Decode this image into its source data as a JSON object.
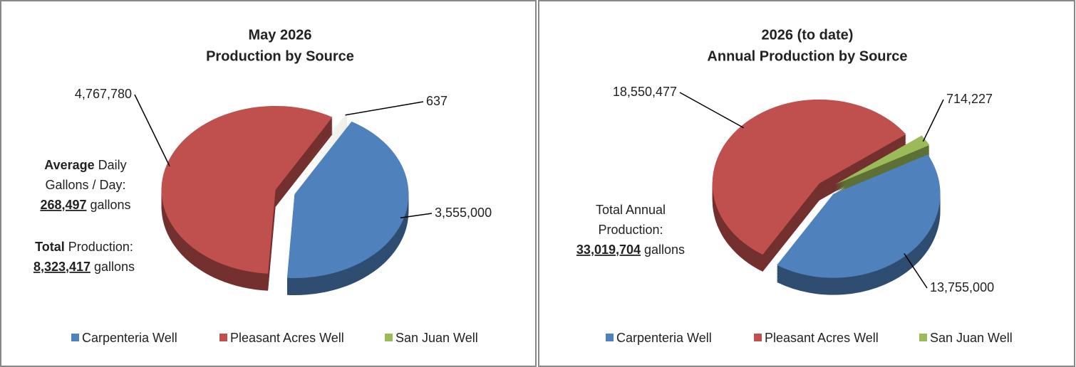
{
  "chart_data": [
    {
      "type": "pie",
      "title": [
        "May 2026",
        "Production by Source"
      ],
      "categories": [
        "Carpenteria Well",
        "Pleasant Acres Well",
        "San Juan Well"
      ],
      "series": [
        {
          "values": [
            3555000,
            4767780,
            637
          ],
          "value_labels": [
            "3,555,000",
            "4,767,780",
            "637"
          ],
          "colors": [
            "#4f81bd",
            "#c0504d",
            "#9bbb59"
          ]
        }
      ],
      "legend": "bottom",
      "annotations": [
        [
          [
            {
              "text": "Average",
              "style": "bold"
            },
            {
              "text": "Daily"
            }
          ],
          [
            {
              "text": "Gallons / Day:"
            }
          ],
          [
            {
              "text": "268,497",
              "style": "bold-underline"
            },
            {
              "text": "gallons"
            }
          ]
        ],
        [
          [
            {
              "text": "Total",
              "style": "bold"
            },
            {
              "text": "Production:"
            }
          ],
          [
            {
              "text": "8,323,417",
              "style": "bold-underline"
            },
            {
              "text": "gallons"
            }
          ]
        ]
      ]
    },
    {
      "type": "pie",
      "title": [
        "2026 (to date)",
        "Annual Production by Source"
      ],
      "categories": [
        "Carpenteria Well",
        "Pleasant Acres Well",
        "San Juan Well"
      ],
      "series": [
        {
          "values": [
            13755000,
            18550477,
            714227
          ],
          "value_labels": [
            "13,755,000",
            "18,550,477",
            "714,227"
          ],
          "colors": [
            "#4f81bd",
            "#c0504d",
            "#9bbb59"
          ]
        }
      ],
      "legend": "bottom",
      "annotations": [
        [
          [
            {
              "text": "Total Annual"
            }
          ],
          [
            {
              "text": "Production:"
            }
          ],
          [
            {
              "text": "33,019,704",
              "style": "bold-underline"
            },
            {
              "text": "gallons"
            }
          ]
        ]
      ]
    }
  ]
}
